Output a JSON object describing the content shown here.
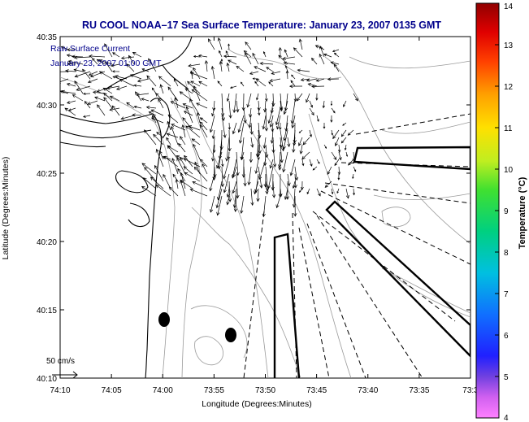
{
  "chart_data": {
    "type": "map",
    "title": "RU COOL  NOAA–17  Sea Surface Temperature:  January 23, 2007 0135 GMT",
    "overlay_title": "Raw Surface Current",
    "overlay_time": "January 23, 2007 01:00 GMT",
    "xlabel": "Longitude (Degrees:Minutes)",
    "ylabel": "Latitude (Degrees:Minutes)",
    "x_ticks": [
      "74:10",
      "74:05",
      "74:00",
      "73:55",
      "73:50",
      "73:45",
      "73:40",
      "73:35",
      "73:3"
    ],
    "y_ticks": [
      "40:35",
      "40:30",
      "40:25",
      "40:20",
      "40:15",
      "40:10"
    ],
    "xlim_minutes_west_of_74": [
      10,
      -30
    ],
    "ylim_minutes_north_of_40": [
      10,
      35
    ],
    "colorbar": {
      "label": "Temperature (°C)",
      "ticks": [
        "4",
        "5",
        "6",
        "7",
        "8",
        "9",
        "10",
        "11",
        "12",
        "13",
        "14"
      ],
      "range": [
        4,
        14
      ]
    },
    "scale_label": "50 cm/s",
    "colors": {
      "title": "#00008b",
      "coast": "#000000",
      "bathymetry": "#9a9a9a",
      "vector": "#000000"
    }
  }
}
